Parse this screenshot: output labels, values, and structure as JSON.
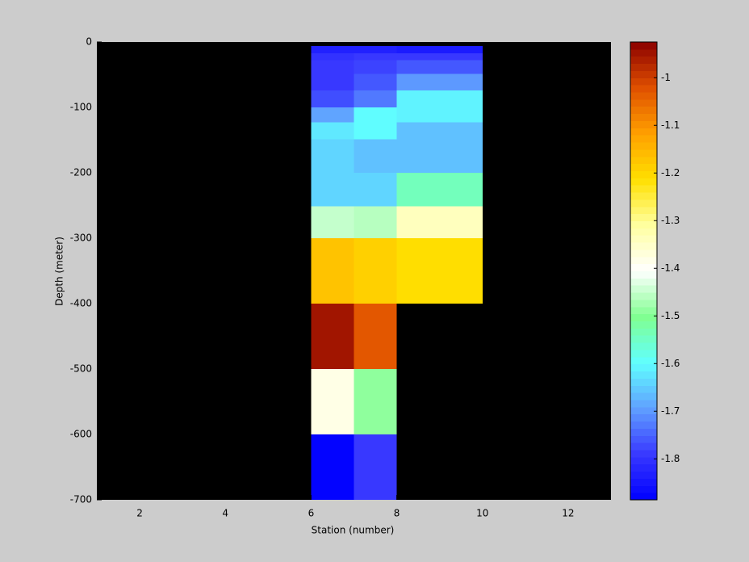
{
  "chart_data": {
    "type": "heatmap",
    "xlabel": "Station (number)",
    "ylabel": "Depth (meter)",
    "xlim": [
      1,
      13
    ],
    "xticks": [
      2,
      4,
      6,
      8,
      10,
      12
    ],
    "ylim": [
      -700,
      0
    ],
    "yticks": [
      0,
      -100,
      -200,
      -300,
      -400,
      -500,
      -600,
      -700
    ],
    "background": "#000000",
    "colormap": [
      "#0000ff",
      "#3838ff",
      "#60a0ff",
      "#60ffff",
      "#80ff90",
      "#ffffff",
      "#ffffa0",
      "#ffe000",
      "#ffa000",
      "#e05000",
      "#8b0000"
    ],
    "clim": [
      -1.886,
      -0.925
    ],
    "cticks": [
      -1,
      -1.1,
      -1.2,
      -1.3,
      -1.4,
      -1.5,
      -1.6,
      -1.7,
      -1.8
    ],
    "cells": [
      {
        "x": [
          6,
          7
        ],
        "y": [
          -6,
          -17
        ],
        "value": -1.83
      },
      {
        "x": [
          6,
          7
        ],
        "y": [
          -17,
          -28
        ],
        "value": -1.8
      },
      {
        "x": [
          6,
          7
        ],
        "y": [
          -28,
          -49
        ],
        "value": -1.79
      },
      {
        "x": [
          6,
          7
        ],
        "y": [
          -49,
          -74
        ],
        "value": -1.79
      },
      {
        "x": [
          6,
          7
        ],
        "y": [
          -74,
          -100
        ],
        "value": -1.77
      },
      {
        "x": [
          6,
          7
        ],
        "y": [
          -100,
          -123
        ],
        "value": -1.69
      },
      {
        "x": [
          6,
          7
        ],
        "y": [
          -123,
          -149
        ],
        "value": -1.62
      },
      {
        "x": [
          6,
          7
        ],
        "y": [
          -149,
          -251
        ],
        "value": -1.64
      },
      {
        "x": [
          6,
          7
        ],
        "y": [
          -251,
          -300
        ],
        "value": -1.45
      },
      {
        "x": [
          6,
          7
        ],
        "y": [
          -300,
          -400
        ],
        "value": -1.17
      },
      {
        "x": [
          6,
          7
        ],
        "y": [
          -400,
          -500
        ],
        "value": -0.95
      },
      {
        "x": [
          6,
          7
        ],
        "y": [
          -500,
          -600
        ],
        "value": -1.38
      },
      {
        "x": [
          6,
          7
        ],
        "y": [
          -600,
          -700
        ],
        "value": -1.88
      },
      {
        "x": [
          7,
          8
        ],
        "y": [
          -6,
          -17
        ],
        "value": -1.83
      },
      {
        "x": [
          7,
          8
        ],
        "y": [
          -17,
          -28
        ],
        "value": -1.79
      },
      {
        "x": [
          7,
          8
        ],
        "y": [
          -28,
          -49
        ],
        "value": -1.78
      },
      {
        "x": [
          7,
          8
        ],
        "y": [
          -49,
          -74
        ],
        "value": -1.76
      },
      {
        "x": [
          7,
          8
        ],
        "y": [
          -74,
          -100
        ],
        "value": -1.73
      },
      {
        "x": [
          7,
          8
        ],
        "y": [
          -100,
          -149
        ],
        "value": -1.6
      },
      {
        "x": [
          7,
          8
        ],
        "y": [
          -149,
          -200
        ],
        "value": -1.66
      },
      {
        "x": [
          7,
          8
        ],
        "y": [
          -200,
          -251
        ],
        "value": -1.64
      },
      {
        "x": [
          7,
          8
        ],
        "y": [
          -251,
          -300
        ],
        "value": -1.46
      },
      {
        "x": [
          7,
          8
        ],
        "y": [
          -300,
          -400
        ],
        "value": -1.19
      },
      {
        "x": [
          7,
          8
        ],
        "y": [
          -400,
          -500
        ],
        "value": -1.03
      },
      {
        "x": [
          7,
          8
        ],
        "y": [
          -500,
          -600
        ],
        "value": -1.49
      },
      {
        "x": [
          7,
          8
        ],
        "y": [
          -600,
          -700
        ],
        "value": -1.79
      },
      {
        "x": [
          8,
          10
        ],
        "y": [
          -6,
          -17
        ],
        "value": -1.84
      },
      {
        "x": [
          8,
          10
        ],
        "y": [
          -17,
          -28
        ],
        "value": -1.79
      },
      {
        "x": [
          8,
          10
        ],
        "y": [
          -28,
          -49
        ],
        "value": -1.76
      },
      {
        "x": [
          8,
          10
        ],
        "y": [
          -49,
          -74
        ],
        "value": -1.7
      },
      {
        "x": [
          8,
          10
        ],
        "y": [
          -74,
          -123
        ],
        "value": -1.61
      },
      {
        "x": [
          8,
          10
        ],
        "y": [
          -123,
          -200
        ],
        "value": -1.66
      },
      {
        "x": [
          8,
          10
        ],
        "y": [
          -200,
          -251
        ],
        "value": -1.54
      },
      {
        "x": [
          8,
          10
        ],
        "y": [
          -251,
          -300
        ],
        "value": -1.34
      },
      {
        "x": [
          8,
          10
        ],
        "y": [
          -300,
          -400
        ],
        "value": -1.21
      }
    ]
  }
}
